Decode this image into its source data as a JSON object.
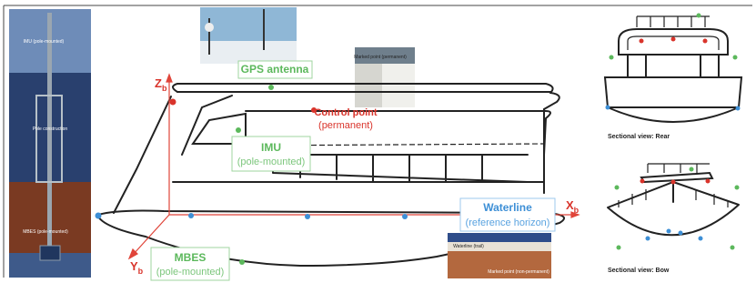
{
  "left_photo": {
    "label_top": "IMU (pole-mounted)",
    "label_middle": "Pole construction",
    "label_bottom": "MBES (pole-mounted)"
  },
  "axes": {
    "z": {
      "main": "Z",
      "sub": "b"
    },
    "x": {
      "main": "X",
      "sub": "b"
    },
    "y": {
      "main": "Y",
      "sub": "b"
    }
  },
  "labels": {
    "gps": "GPS antenna",
    "control_point": [
      "Control point",
      "(permanent)"
    ],
    "imu": [
      "IMU",
      "(pole-mounted)"
    ],
    "mbes": [
      "MBES",
      "(pole-mounted)"
    ],
    "waterline": [
      "Waterline",
      "(reference horizon)"
    ]
  },
  "photos": {
    "marked_point_top": "Marked point (permanent)",
    "waterline_small": "Waterline (trail)",
    "marked_point_bottom": "Marked point (non-permanent)"
  },
  "sections": {
    "rear": "Sectional view: Rear",
    "bow": "Sectional view: Bow"
  }
}
